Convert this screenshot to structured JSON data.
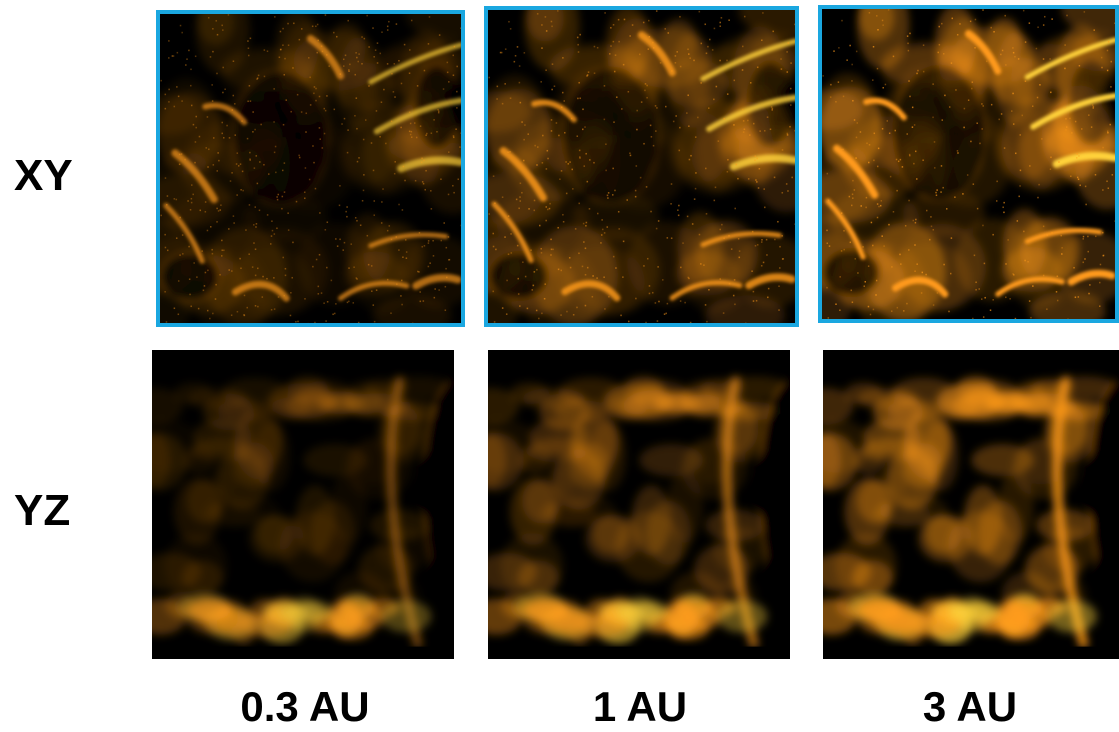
{
  "row_labels": {
    "xy": "XY",
    "yz": "YZ"
  },
  "column_labels": [
    "0.3 AU",
    "1 AU",
    "3 AU"
  ],
  "colors": {
    "frame": "#1aa7e0",
    "signal": "#ff9a1a",
    "signal_bright": "#ffd23a",
    "background": "#000000"
  },
  "panels": [
    {
      "row": "xy",
      "column": "0.3 AU",
      "brightness": 0.35,
      "framed": true
    },
    {
      "row": "xy",
      "column": "1 AU",
      "brightness": 0.65,
      "framed": true
    },
    {
      "row": "xy",
      "column": "3 AU",
      "brightness": 1.0,
      "framed": true
    },
    {
      "row": "yz",
      "column": "0.3 AU",
      "brightness": 0.35,
      "framed": false
    },
    {
      "row": "yz",
      "column": "1 AU",
      "brightness": 0.65,
      "framed": false
    },
    {
      "row": "yz",
      "column": "3 AU",
      "brightness": 1.0,
      "framed": false
    }
  ]
}
